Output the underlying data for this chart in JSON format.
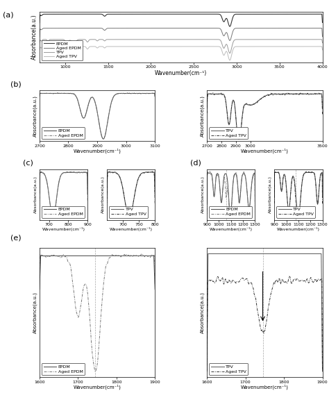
{
  "title_a": "(a)",
  "title_b": "(b)",
  "title_c": "(c)",
  "title_d": "(d)",
  "title_e": "(e)",
  "xlabel": "Wavenumber(cm⁻¹)",
  "ylabel": "Absorbance(a.u.)",
  "legend_epdm": "EPDM",
  "legend_aged_epdm": "Aged EPDM",
  "legend_tpv": "TPV",
  "legend_aged_tpv": "Aged TPV",
  "color_dark": "#555555",
  "color_medium": "#888888",
  "color_light": "#aaaaaa",
  "color_vlight": "#cccccc"
}
